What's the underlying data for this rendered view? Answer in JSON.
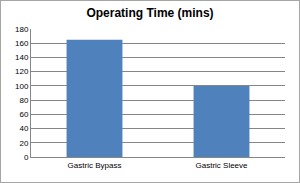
{
  "chart_data": {
    "type": "bar",
    "title": "Operating Time (mins)",
    "categories": [
      "Gastric Bypass",
      "Gastric Sleeve"
    ],
    "values": [
      165,
      100
    ],
    "color": "#4f81bd",
    "ylim": [
      0,
      180
    ],
    "yticks": [
      0,
      20,
      40,
      60,
      80,
      100,
      120,
      140,
      160,
      180
    ],
    "grid": true
  }
}
